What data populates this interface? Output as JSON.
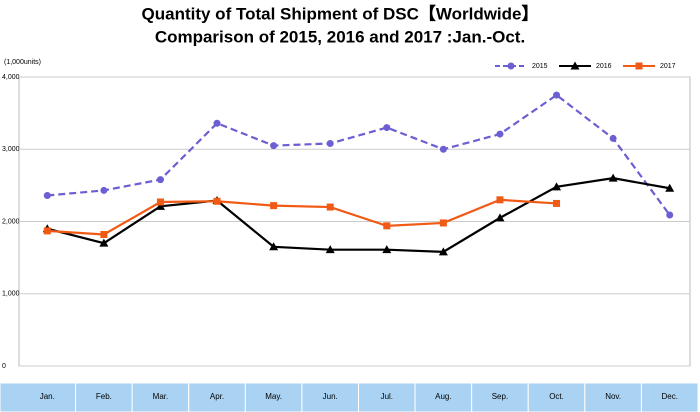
{
  "chart_data": {
    "type": "line",
    "title": [
      "Quantity of Total Shipment of DSC【Worldwide】",
      "Comparison of 2015, 2016 and 2017 :Jan.-Oct."
    ],
    "y_axis_label": "(1,000units)",
    "categories": [
      "Jan.",
      "Feb.",
      "Mar.",
      "Apr.",
      "May.",
      "Jun.",
      "Jul.",
      "Aug.",
      "Sep.",
      "Oct.",
      "Nov.",
      "Dec."
    ],
    "series": [
      {
        "name": "2015",
        "color": "#6b5fd3",
        "dash": true,
        "marker": "circle",
        "values": [
          2360,
          2430,
          2580,
          3360,
          3050,
          3080,
          3300,
          3000,
          3210,
          3750,
          3150,
          2090
        ]
      },
      {
        "name": "2016",
        "color": "#000000",
        "dash": false,
        "marker": "triangle",
        "values": [
          1900,
          1700,
          2210,
          2290,
          1650,
          1610,
          1610,
          1580,
          2050,
          2480,
          2600,
          2460
        ]
      },
      {
        "name": "2017",
        "color": "#f05a14",
        "dash": false,
        "marker": "square",
        "values": [
          1870,
          1820,
          2270,
          2280,
          2220,
          2200,
          1940,
          1980,
          2300,
          2250,
          null,
          null
        ]
      }
    ],
    "ylim": [
      0,
      4000
    ],
    "yticks": [
      0,
      {
        "value": 1000,
        "label": "1,000"
      },
      {
        "value": 2000,
        "label": "2,000"
      },
      {
        "value": 3000,
        "label": "3,000"
      },
      {
        "value": 4000,
        "label": "4,000"
      }
    ],
    "grid": true,
    "legend": "top-right"
  }
}
